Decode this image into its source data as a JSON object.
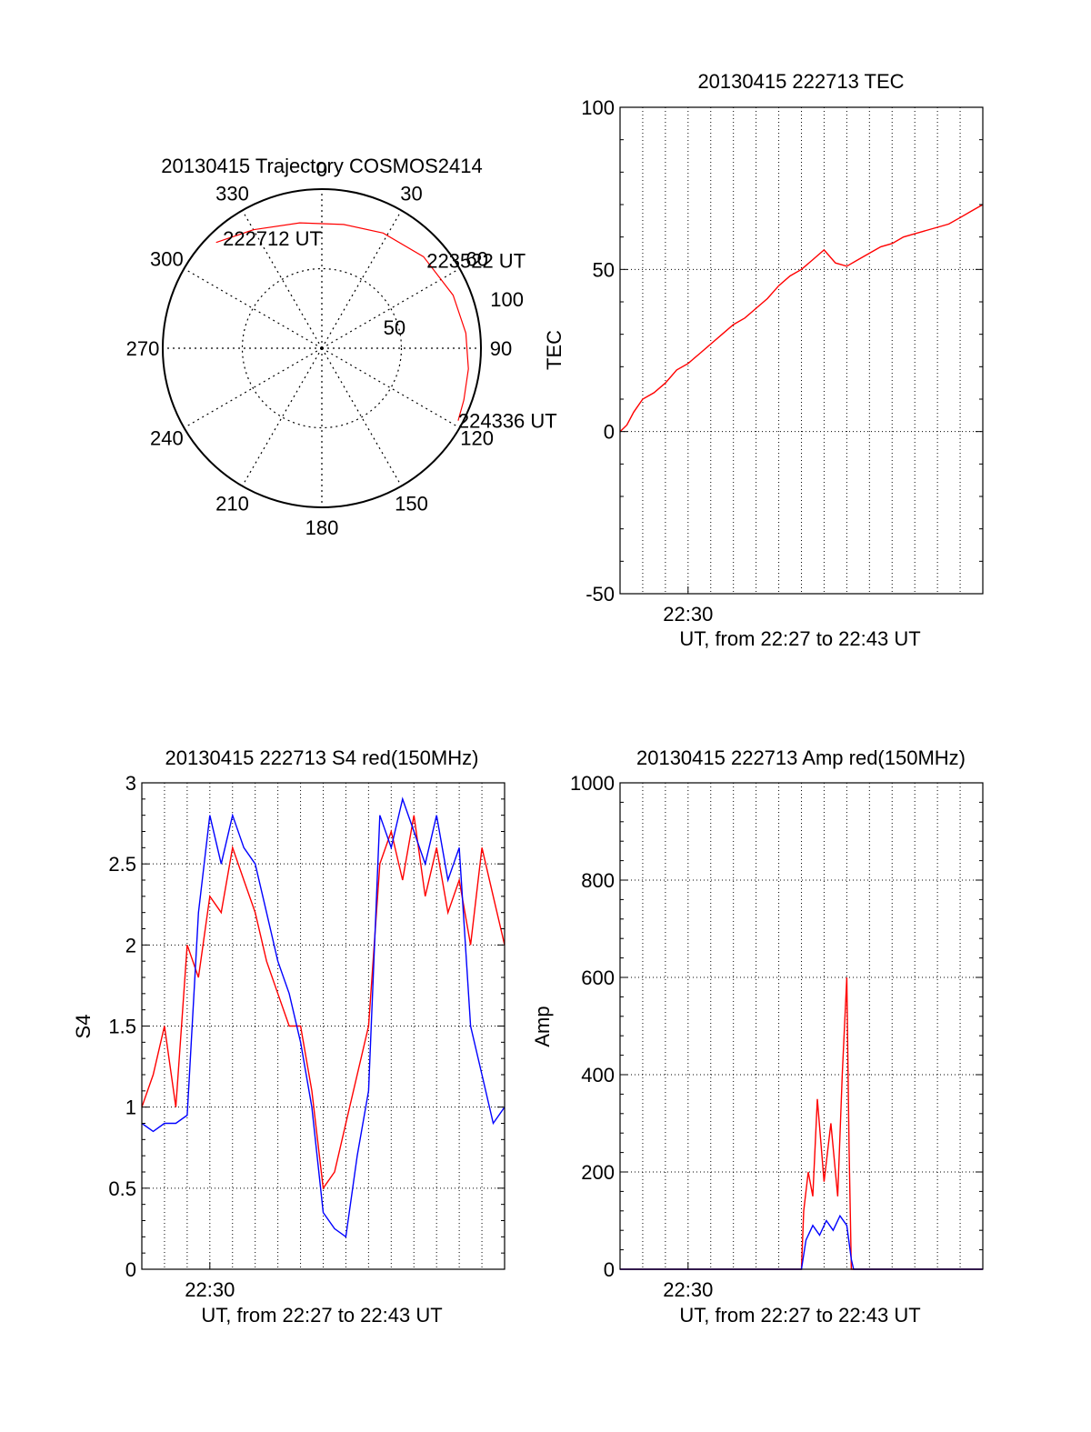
{
  "colors": {
    "red": "#ff0000",
    "blue": "#0000ff",
    "axis": "#000000",
    "grid": "#000000"
  },
  "chart_data": [
    {
      "id": "trajectory",
      "type": "polar",
      "title": "20130415 Trajectory COSMOS2414",
      "r_range": [
        0,
        100
      ],
      "r_ticks": [
        50,
        100
      ],
      "azimuth_ticks": [
        "0",
        "30",
        "60",
        "90",
        "120",
        "150",
        "180",
        "210",
        "240",
        "270",
        "300",
        "330"
      ],
      "azimuth_tick_values": [
        0,
        30,
        60,
        90,
        120,
        150,
        180,
        210,
        240,
        270,
        300,
        330
      ],
      "grid": true,
      "track": {
        "azimuth_deg": [
          315,
          330,
          350,
          10,
          28,
          48,
          68,
          84,
          98,
          110,
          118
        ],
        "zenith": [
          94,
          86,
          80,
          79,
          82,
          86,
          89,
          91,
          93,
          95,
          97
        ]
      },
      "annotations": [
        {
          "label": "222712 UT",
          "azimuth_deg": 318,
          "zenith": 93
        },
        {
          "label": "223522 UT",
          "azimuth_deg": 50,
          "zenith": 86
        },
        {
          "label": "224336 UT",
          "azimuth_deg": 118,
          "zenith": 97
        }
      ]
    },
    {
      "id": "tec",
      "type": "line",
      "title": "20130415 222713 TEC",
      "xlabel": "UT, from 22:27 to 22:43 UT",
      "ylabel": "TEC",
      "xlim": [
        0,
        16
      ],
      "ylim": [
        -50,
        100
      ],
      "yticks": [
        "-50",
        "0",
        "50",
        "100"
      ],
      "ytick_values": [
        -50,
        0,
        50,
        100
      ],
      "xticks": [
        "22:30"
      ],
      "xtick_values": [
        3
      ],
      "grid": true,
      "series": [
        {
          "color": "red",
          "x": [
            0,
            0.3,
            0.6,
            1.0,
            1.5,
            2.0,
            2.5,
            3.0,
            3.5,
            4.0,
            4.5,
            5.0,
            5.5,
            6.0,
            6.5,
            7.0,
            7.5,
            8.0,
            8.5,
            9.0,
            9.5,
            10.0,
            10.5,
            11.0,
            11.5,
            12.0,
            12.5,
            13.0,
            13.5,
            14.0,
            14.5,
            15.0,
            15.5,
            16.0
          ],
          "y": [
            0,
            2,
            6,
            10,
            12,
            15,
            19,
            21,
            24,
            27,
            30,
            33,
            35,
            38,
            41,
            45,
            48,
            50,
            53,
            56,
            52,
            51,
            53,
            55,
            57,
            58,
            60,
            61,
            62,
            63,
            64,
            66,
            68,
            70
          ]
        }
      ]
    },
    {
      "id": "s4",
      "type": "line",
      "title": "20130415 222713 S4 red(150MHz)",
      "xlabel": "UT, from 22:27 to 22:43 UT",
      "ylabel": "S4",
      "xlim": [
        0,
        16
      ],
      "ylim": [
        0,
        3
      ],
      "yticks": [
        "0",
        "0.5",
        "1",
        "1.5",
        "2",
        "2.5",
        "3"
      ],
      "ytick_values": [
        0,
        0.5,
        1,
        1.5,
        2,
        2.5,
        3
      ],
      "xticks": [
        "22:30"
      ],
      "xtick_values": [
        3
      ],
      "grid": true,
      "series": [
        {
          "color": "red",
          "x": [
            0,
            0.5,
            1.0,
            1.5,
            2.0,
            2.5,
            3.0,
            3.5,
            4.0,
            4.5,
            5.0,
            5.5,
            6.0,
            6.5,
            7.0,
            7.5,
            8.0,
            8.5,
            9.0,
            9.5,
            10.0,
            10.5,
            11.0,
            11.5,
            12.0,
            12.5,
            13.0,
            13.5,
            14.0,
            14.5,
            15.0,
            15.5,
            16.0
          ],
          "y": [
            1.0,
            1.2,
            1.5,
            1.0,
            2.0,
            1.8,
            2.3,
            2.2,
            2.6,
            2.4,
            2.2,
            1.9,
            1.7,
            1.5,
            1.5,
            1.1,
            0.5,
            0.6,
            0.9,
            1.2,
            1.5,
            2.5,
            2.7,
            2.4,
            2.8,
            2.3,
            2.6,
            2.2,
            2.4,
            2.0,
            2.6,
            2.3,
            2.0
          ]
        },
        {
          "color": "blue",
          "x": [
            0,
            0.5,
            1.0,
            1.5,
            2.0,
            2.5,
            3.0,
            3.5,
            4.0,
            4.5,
            5.0,
            5.5,
            6.0,
            6.5,
            7.0,
            7.5,
            8.0,
            8.5,
            9.0,
            9.5,
            10.0,
            10.5,
            11.0,
            11.5,
            12.0,
            12.5,
            13.0,
            13.5,
            14.0,
            14.5,
            15.0,
            15.5,
            16.0
          ],
          "y": [
            0.9,
            0.85,
            0.9,
            0.9,
            0.95,
            2.2,
            2.8,
            2.5,
            2.8,
            2.6,
            2.5,
            2.2,
            1.9,
            1.7,
            1.4,
            1.0,
            0.35,
            0.25,
            0.2,
            0.7,
            1.1,
            2.8,
            2.6,
            2.9,
            2.7,
            2.5,
            2.8,
            2.4,
            2.6,
            1.5,
            1.2,
            0.9,
            1.0
          ]
        }
      ]
    },
    {
      "id": "amp",
      "type": "line",
      "title": "20130415 222713 Amp red(150MHz)",
      "xlabel": "UT, from 22:27 to 22:43 UT",
      "ylabel": "Amp",
      "xlim": [
        0,
        16
      ],
      "ylim": [
        0,
        1000
      ],
      "yticks": [
        "0",
        "200",
        "400",
        "600",
        "800",
        "1000"
      ],
      "ytick_values": [
        0,
        200,
        400,
        600,
        800,
        1000
      ],
      "xticks": [
        "22:30"
      ],
      "xtick_values": [
        3
      ],
      "grid": true,
      "series": [
        {
          "color": "red",
          "x": [
            0,
            8.0,
            8.1,
            8.3,
            8.5,
            8.7,
            9.0,
            9.3,
            9.6,
            9.8,
            10.0,
            10.1,
            10.2,
            10.4,
            16.0
          ],
          "y": [
            0,
            0,
            120,
            200,
            150,
            350,
            180,
            300,
            150,
            400,
            600,
            250,
            0,
            0,
            0
          ]
        },
        {
          "color": "blue",
          "x": [
            0,
            8.0,
            8.2,
            8.5,
            8.8,
            9.1,
            9.4,
            9.7,
            10.0,
            10.2,
            10.3,
            16.0
          ],
          "y": [
            0,
            0,
            60,
            90,
            70,
            100,
            80,
            110,
            90,
            20,
            0,
            0
          ]
        }
      ]
    }
  ]
}
